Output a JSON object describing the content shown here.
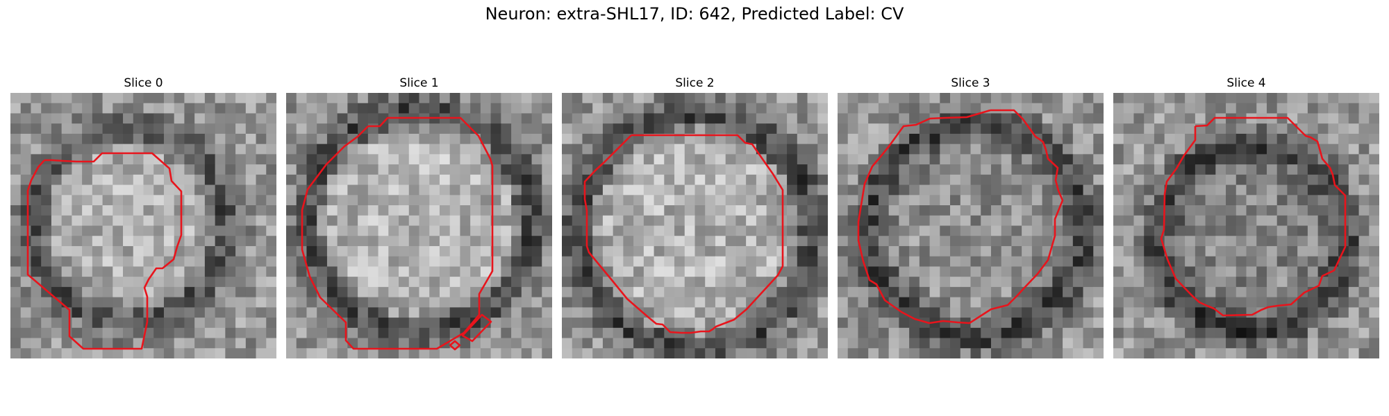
{
  "figure": {
    "title": "Neuron: extra-SHL17, ID: 642, Predicted Label: CV"
  },
  "panels": [
    {
      "label": "Slice 0"
    },
    {
      "label": "Slice 1"
    },
    {
      "label": "Slice 2"
    },
    {
      "label": "Slice 3"
    },
    {
      "label": "Slice 4"
    }
  ],
  "colors": {
    "contour": "#e8141c",
    "background": "#ffffff"
  }
}
